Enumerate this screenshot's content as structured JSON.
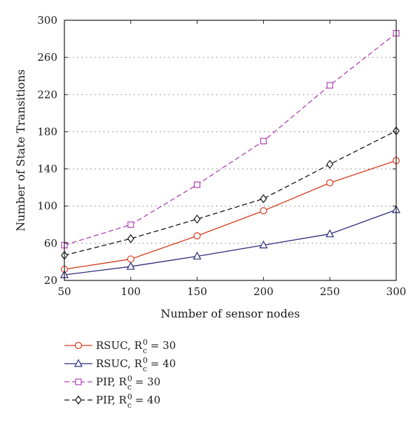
{
  "chart_data": {
    "type": "line",
    "xlabel": "Number of sensor nodes",
    "ylabel": "Number of State Transitions",
    "xlim": [
      50,
      300
    ],
    "ylim": [
      20,
      300
    ],
    "xticks": [
      50,
      100,
      150,
      200,
      250,
      300
    ],
    "yticks": [
      20,
      60,
      100,
      140,
      180,
      220,
      260,
      300
    ],
    "grid": "horizontal-dotted",
    "legend_position": "bottom-left-below-plot",
    "x": [
      50,
      100,
      150,
      200,
      250,
      300
    ],
    "series": [
      {
        "label": {
          "base": "RSUC, R",
          "sup": "0",
          "sub": "c",
          "tail": " = 30"
        },
        "values": [
          32,
          43,
          68,
          95,
          125,
          149
        ],
        "color": "#d9381e",
        "dash": "solid",
        "marker": "circle"
      },
      {
        "label": {
          "base": "RSUC, R",
          "sup": "0",
          "sub": "c",
          "tail": " = 40"
        },
        "values": [
          26,
          35,
          46,
          58,
          70,
          96
        ],
        "color": "#2b2b7a",
        "dash": "solid",
        "marker": "triangle"
      },
      {
        "label": {
          "base": "PIP, R",
          "sup": "0",
          "sub": "c",
          "tail": " = 30"
        },
        "values": [
          58,
          80,
          123,
          170,
          230,
          286
        ],
        "color": "#b040b8",
        "dash": "dashed",
        "marker": "square"
      },
      {
        "label": {
          "base": "PIP, R",
          "sup": "0",
          "sub": "c",
          "tail": " = 40"
        },
        "values": [
          47,
          65,
          86,
          108,
          145,
          181
        ],
        "color": "#111111",
        "dash": "dashed",
        "marker": "diamond"
      }
    ]
  }
}
